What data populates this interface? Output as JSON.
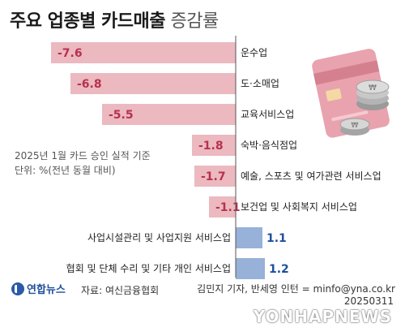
{
  "title": {
    "main": "주요 업종별 카드매출",
    "sub": "증감률"
  },
  "note": {
    "line1": "2025년 1월 카드 승인 실적 기준",
    "line2": "단위: %(전년 동월 대비)"
  },
  "colors": {
    "negative": "#ebb9bf",
    "positive": "#97b1d8",
    "neg_label": "#b83050",
    "pos_label": "#1e4f9c",
    "axis": "#555555"
  },
  "chart_data": {
    "type": "bar",
    "orientation": "horizontal",
    "categories": [
      "운수업",
      "도·소매업",
      "교육서비스업",
      "숙박·음식점업",
      "예술, 스포츠 및 여가관련 서비스업",
      "보건업 및 사회복지 서비스업",
      "사업시설관리 및 사업지원 서비스업",
      "협회 및 단체 수리 및 기타 개인 서비스업"
    ],
    "values": [
      -7.6,
      -6.8,
      -5.5,
      -1.8,
      -1.7,
      -1.1,
      1.1,
      1.2
    ],
    "value_labels": [
      "-7.6",
      "-6.8",
      "-5.5",
      "-1.8",
      "-1.7",
      "-1.1",
      "1.1",
      "1.2"
    ],
    "unit": "%"
  },
  "footer": {
    "logo": "연합뉴스",
    "source": "자료: 여신금융협회",
    "credit": "김민지 기자, 반세영 인턴 = minfo@yna.co.kr",
    "date": "20250311",
    "watermark": "YONHAPNEWS"
  }
}
